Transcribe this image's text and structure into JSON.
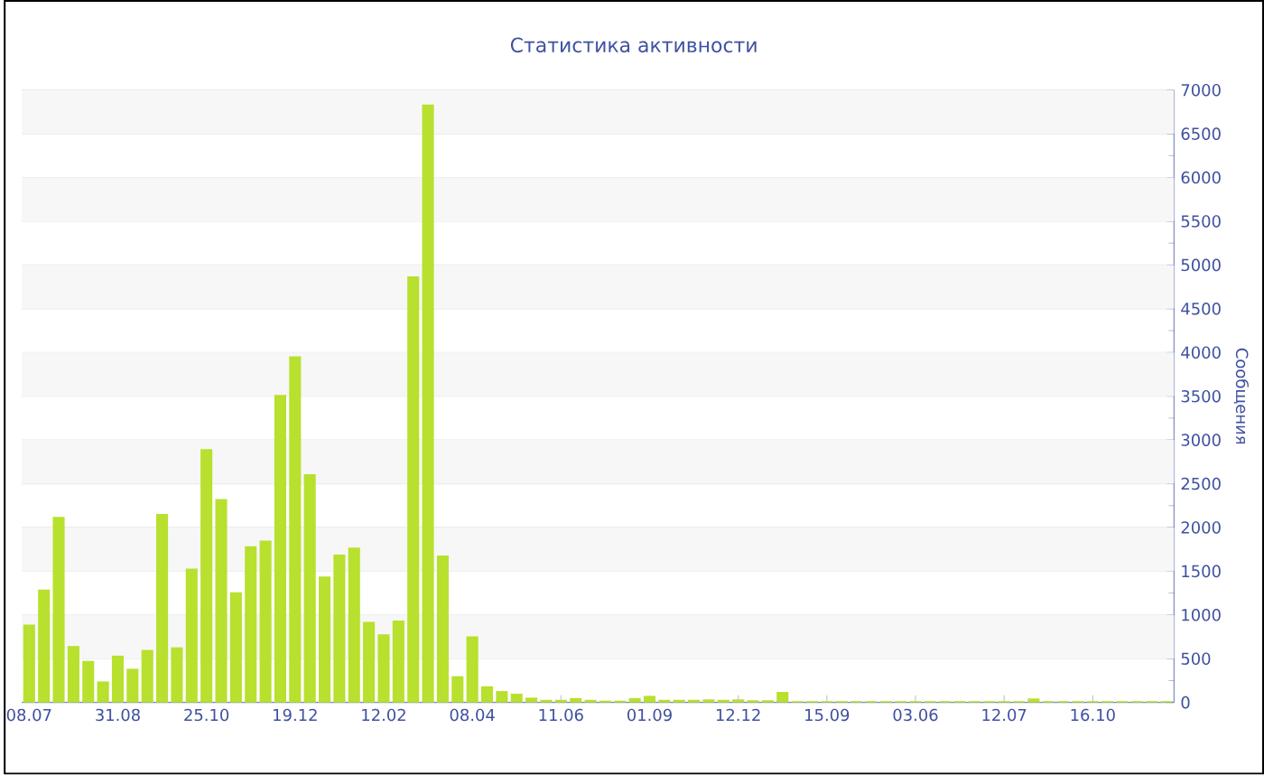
{
  "chart_data": {
    "type": "bar",
    "title": "Статистика активности",
    "ylabel": "Сообщения",
    "categories": [
      "08.07",
      null,
      null,
      null,
      null,
      null,
      "31.08",
      null,
      null,
      null,
      null,
      null,
      "25.10",
      null,
      null,
      null,
      null,
      null,
      "19.12",
      null,
      null,
      null,
      null,
      null,
      "12.02",
      null,
      null,
      null,
      null,
      null,
      "08.04",
      null,
      null,
      null,
      null,
      null,
      "11.06",
      null,
      null,
      null,
      null,
      null,
      "01.09",
      null,
      null,
      null,
      null,
      null,
      "12.12",
      null,
      null,
      null,
      null,
      null,
      "15.09",
      null,
      null,
      null,
      null,
      null,
      "03.06",
      null,
      null,
      null,
      null,
      null,
      "12.07",
      null,
      null,
      null,
      null,
      null,
      "16.10",
      null,
      null,
      null,
      null,
      null
    ],
    "values": [
      890,
      1290,
      2120,
      645,
      475,
      240,
      535,
      385,
      600,
      2155,
      630,
      1530,
      2895,
      2325,
      1260,
      1785,
      1850,
      3515,
      3955,
      2610,
      1440,
      1690,
      1770,
      920,
      780,
      935,
      4870,
      6835,
      1680,
      300,
      755,
      185,
      130,
      100,
      55,
      30,
      30,
      50,
      30,
      20,
      20,
      50,
      75,
      30,
      30,
      30,
      35,
      30,
      35,
      25,
      25,
      120,
      15,
      15,
      15,
      15,
      15,
      15,
      15,
      15,
      15,
      15,
      15,
      15,
      15,
      15,
      15,
      15,
      45,
      15,
      15,
      15,
      15,
      15,
      15,
      15,
      15,
      15
    ],
    "color": "#b8e02e",
    "ylim": [
      0,
      7000
    ],
    "yticks": [
      0,
      500,
      1000,
      1500,
      2000,
      2500,
      3000,
      3500,
      4000,
      4500,
      5000,
      5500,
      6000,
      6500,
      7000
    ],
    "grid": "y"
  }
}
